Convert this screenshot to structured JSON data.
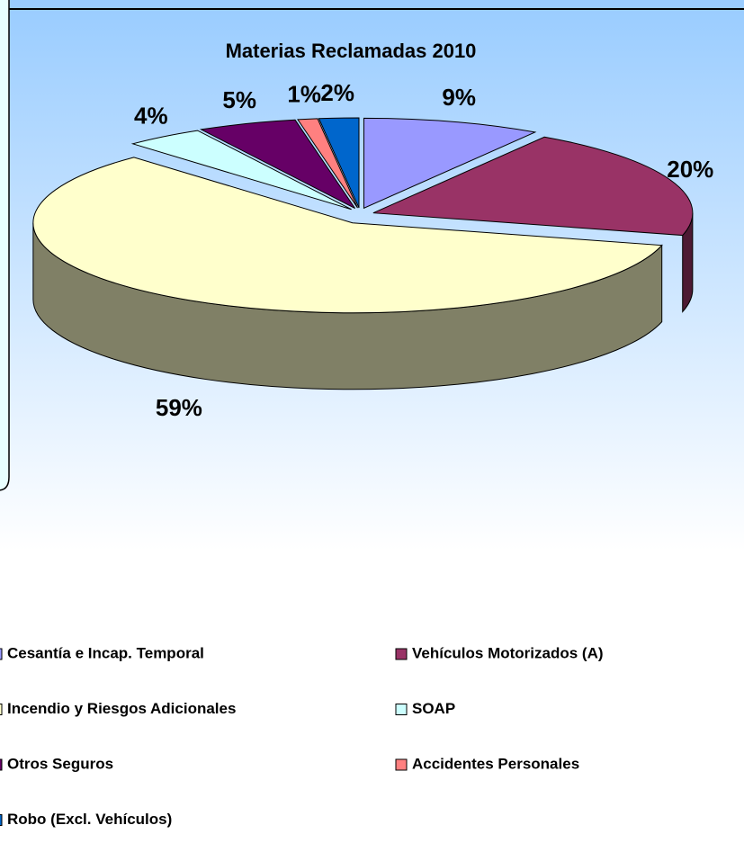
{
  "chart_data": {
    "type": "pie",
    "title": "Materias Reclamadas 2010",
    "categories": [
      "Cesantía e Incap. Temporal",
      "Vehículos Motorizados (A)",
      "Incendio y Riesgos Adicionales",
      "SOAP",
      "Otros Seguros",
      "Accidentes Personales",
      "Robo (Excl. Vehículos)"
    ],
    "values": [
      9,
      20,
      59,
      4,
      5,
      1,
      2
    ],
    "value_labels": [
      "9%",
      "20%",
      "59%",
      "4%",
      "5%",
      "1%",
      "2%"
    ],
    "colors": [
      "#9999ff",
      "#993366",
      "#ffffcc",
      "#ccffff",
      "#660066",
      "#ff8080",
      "#0066cc"
    ]
  }
}
